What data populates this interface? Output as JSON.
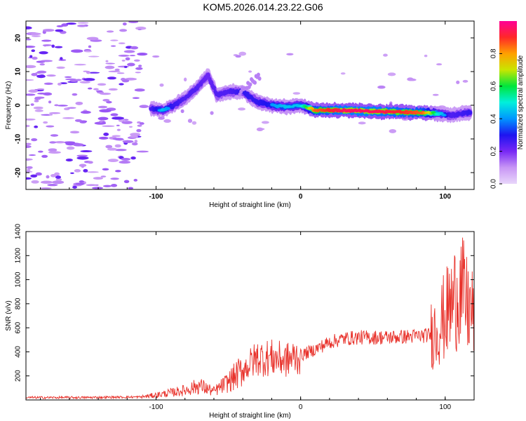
{
  "title": "KOM5.2026.014.23.22.G06",
  "chart_data": [
    {
      "type": "heatmap",
      "title": "",
      "xlabel": "Height of straight line (km)",
      "ylabel": "Frequency (Hz)",
      "xlim": [
        -190,
        120
      ],
      "ylim": [
        -25,
        25
      ],
      "xticks": [
        -100,
        0,
        100
      ],
      "yticks": [
        -20,
        -10,
        0,
        10,
        20
      ],
      "colorbar": {
        "label": "Normalized spectral amplitude",
        "range": [
          0.0,
          1.0
        ],
        "ticks": [
          "0.0",
          "0.2",
          "0.4",
          "0.6",
          "0.8"
        ]
      },
      "ridge": [
        {
          "x": -104,
          "y": -1,
          "amp": 0.3
        },
        {
          "x": -95,
          "y": -1.5,
          "amp": 0.45
        },
        {
          "x": -88,
          "y": 0,
          "amp": 0.35
        },
        {
          "x": -80,
          "y": 2,
          "amp": 0.3
        },
        {
          "x": -72,
          "y": 5,
          "amp": 0.3
        },
        {
          "x": -64,
          "y": 9,
          "amp": 0.25
        },
        {
          "x": -58,
          "y": 3,
          "amp": 0.3
        },
        {
          "x": -50,
          "y": 4,
          "amp": 0.3
        },
        {
          "x": -40,
          "y": 4,
          "amp": 0.35
        },
        {
          "x": -30,
          "y": 1,
          "amp": 0.35
        },
        {
          "x": -20,
          "y": 0,
          "amp": 0.4
        },
        {
          "x": -10,
          "y": -0.5,
          "amp": 0.45
        },
        {
          "x": 0,
          "y": 0,
          "amp": 0.45
        },
        {
          "x": 10,
          "y": -1.5,
          "amp": 0.85
        },
        {
          "x": 30,
          "y": -1.5,
          "amp": 0.95
        },
        {
          "x": 50,
          "y": -1.8,
          "amp": 0.95
        },
        {
          "x": 70,
          "y": -2,
          "amp": 0.9
        },
        {
          "x": 85,
          "y": -2.2,
          "amp": 0.85
        },
        {
          "x": 95,
          "y": -2.5,
          "amp": 0.5
        },
        {
          "x": 105,
          "y": -3,
          "amp": 0.3
        },
        {
          "x": 118,
          "y": -2,
          "amp": 0.35
        }
      ]
    },
    {
      "type": "line",
      "title": "",
      "xlabel": "Height of straight line (km)",
      "ylabel": "SNR (v/v)",
      "xlim": [
        -190,
        120
      ],
      "ylim": [
        0,
        1400
      ],
      "xticks": [
        -100,
        0,
        100
      ],
      "yticks": [
        200,
        400,
        600,
        800,
        1000,
        1200,
        1400
      ],
      "series": [
        {
          "name": "SNR",
          "color": "#e8312a",
          "x": [
            -190,
            -150,
            -110,
            -100,
            -90,
            -80,
            -70,
            -60,
            -50,
            -40,
            -30,
            -20,
            -10,
            0,
            10,
            20,
            30,
            40,
            50,
            60,
            70,
            80,
            90,
            95,
            100,
            105,
            110,
            115,
            120
          ],
          "values": [
            20,
            20,
            25,
            40,
            60,
            80,
            120,
            70,
            150,
            250,
            350,
            350,
            330,
            370,
            420,
            480,
            510,
            520,
            520,
            520,
            525,
            530,
            540,
            600,
            700,
            800,
            950,
            780,
            700
          ]
        }
      ]
    }
  ]
}
